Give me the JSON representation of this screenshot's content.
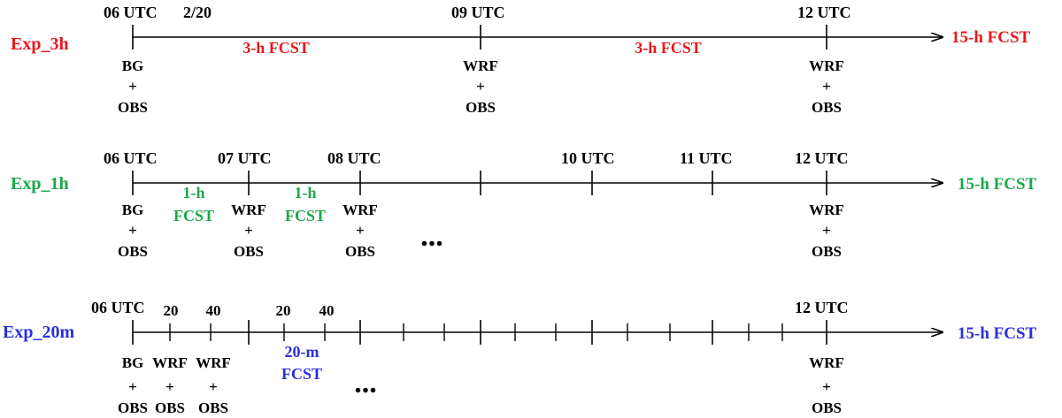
{
  "colors": {
    "red": "#e8171f",
    "green": "#1aa84b",
    "blue": "#2a2fdc",
    "black": "#000000"
  },
  "rows": [
    {
      "label": "Exp_3h",
      "color": "red",
      "end_label": "15-h FCST",
      "top_labels": [
        "06 UTC",
        "2/20",
        "09 UTC",
        "12 UTC"
      ],
      "fcst_labels": [
        "3-h FCST",
        "3-h FCST"
      ],
      "bottom": [
        [
          "BG",
          "+",
          "OBS"
        ],
        [
          "WRF",
          "+",
          "OBS"
        ],
        [
          "WRF",
          "+",
          "OBS"
        ]
      ]
    },
    {
      "label": "Exp_1h",
      "color": "green",
      "end_label": "15-h FCST",
      "top_labels": [
        "06 UTC",
        "07 UTC",
        "08 UTC",
        "10 UTC",
        "11 UTC",
        "12 UTC"
      ],
      "fcst_labels": [
        [
          "1-h",
          "FCST"
        ],
        [
          "1-h",
          "FCST"
        ]
      ],
      "bottom": [
        [
          "BG",
          "+",
          "OBS"
        ],
        [
          "WRF",
          "+",
          "OBS"
        ],
        [
          "WRF",
          "+",
          "OBS"
        ],
        [
          "WRF",
          "+",
          "OBS"
        ]
      ],
      "ellipsis": "..."
    },
    {
      "label": "Exp_20m",
      "color": "blue",
      "end_label": "15-h FCST",
      "top_labels": [
        "06 UTC",
        "20",
        "40",
        "20",
        "40",
        "12 UTC"
      ],
      "fcst_labels": [
        [
          "20-m",
          "FCST"
        ]
      ],
      "bottom": [
        [
          "BG",
          "+",
          "OBS"
        ],
        [
          "WRF",
          "+",
          "OBS"
        ],
        [
          "WRF",
          "+",
          "OBS"
        ],
        [
          "WRF",
          "+",
          "OBS"
        ]
      ],
      "ellipsis": "..."
    }
  ]
}
